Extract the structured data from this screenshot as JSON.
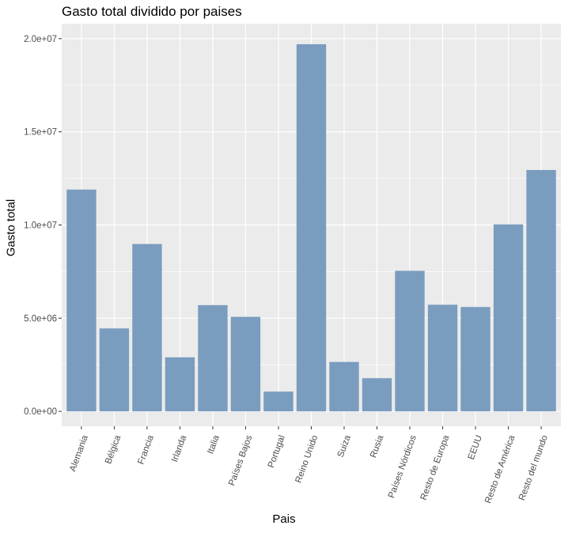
{
  "chart_data": {
    "type": "bar",
    "title": "Gasto total dividido por paises",
    "xlabel": "Pais",
    "ylabel": "Gasto total",
    "categories": [
      "Alemania",
      "Bélgica",
      "Francia",
      "Irlanda",
      "Italia",
      "Países Bajos",
      "Portugal",
      "Reino Unido",
      "Suiza",
      "Rusia",
      "Países Nórdicos",
      "Resto de Europa",
      "EEUU",
      "Resto de América",
      "Resto del mundo"
    ],
    "values": [
      11900000,
      4450000,
      8980000,
      2900000,
      5700000,
      5070000,
      1060000,
      19700000,
      2650000,
      1780000,
      7540000,
      5720000,
      5600000,
      10030000,
      12950000
    ],
    "ylim": [
      -800000,
      20800000
    ],
    "yticks": [
      0,
      5000000,
      10000000,
      15000000,
      20000000
    ],
    "ytick_labels": [
      "0.0e+00",
      "5.0e+06",
      "1.0e+07",
      "1.5e+07",
      "2.0e+07"
    ],
    "bar_color": "#7a9cbf",
    "panel_background": "#ebebeb",
    "grid_color": "#ffffff",
    "grid": true,
    "legend": "none"
  }
}
